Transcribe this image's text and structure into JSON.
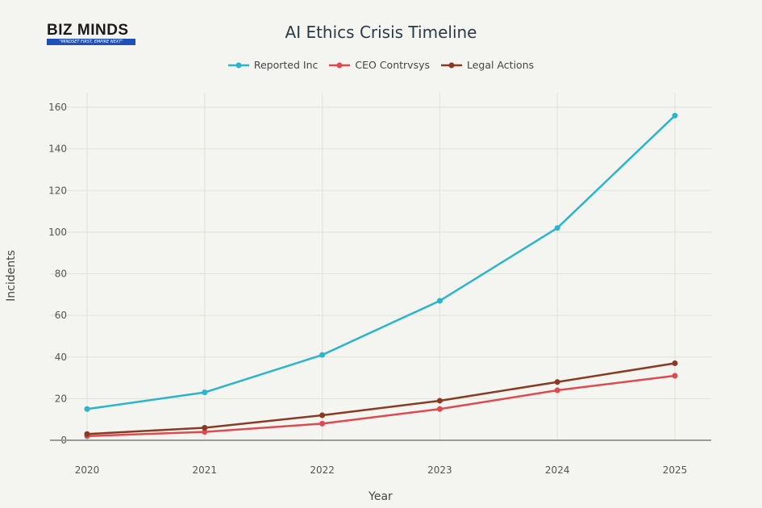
{
  "logo": {
    "name": "BIZ MINDS",
    "tagline": "\"MINDSET FIRST, EMPIRE NEXT\""
  },
  "chart_data": {
    "type": "line",
    "title": "AI Ethics Crisis Timeline",
    "xlabel": "Year",
    "ylabel": "Incidents",
    "x": [
      2020,
      2021,
      2022,
      2023,
      2024,
      2025
    ],
    "ylim": [
      0,
      165
    ],
    "yticks": [
      0,
      20,
      40,
      60,
      80,
      100,
      120,
      140,
      160
    ],
    "grid": true,
    "legend_position": "top-center",
    "series": [
      {
        "name": "Reported Inc",
        "color": "#2bb5cc",
        "values": [
          15,
          23,
          41,
          67,
          102,
          156
        ]
      },
      {
        "name": "CEO Contrvsys",
        "color": "#dd4b50",
        "values": [
          2,
          4,
          8,
          15,
          24,
          31
        ]
      },
      {
        "name": "Legal Actions",
        "color": "#8b3a22",
        "values": [
          3,
          6,
          12,
          19,
          28,
          37
        ]
      }
    ]
  }
}
